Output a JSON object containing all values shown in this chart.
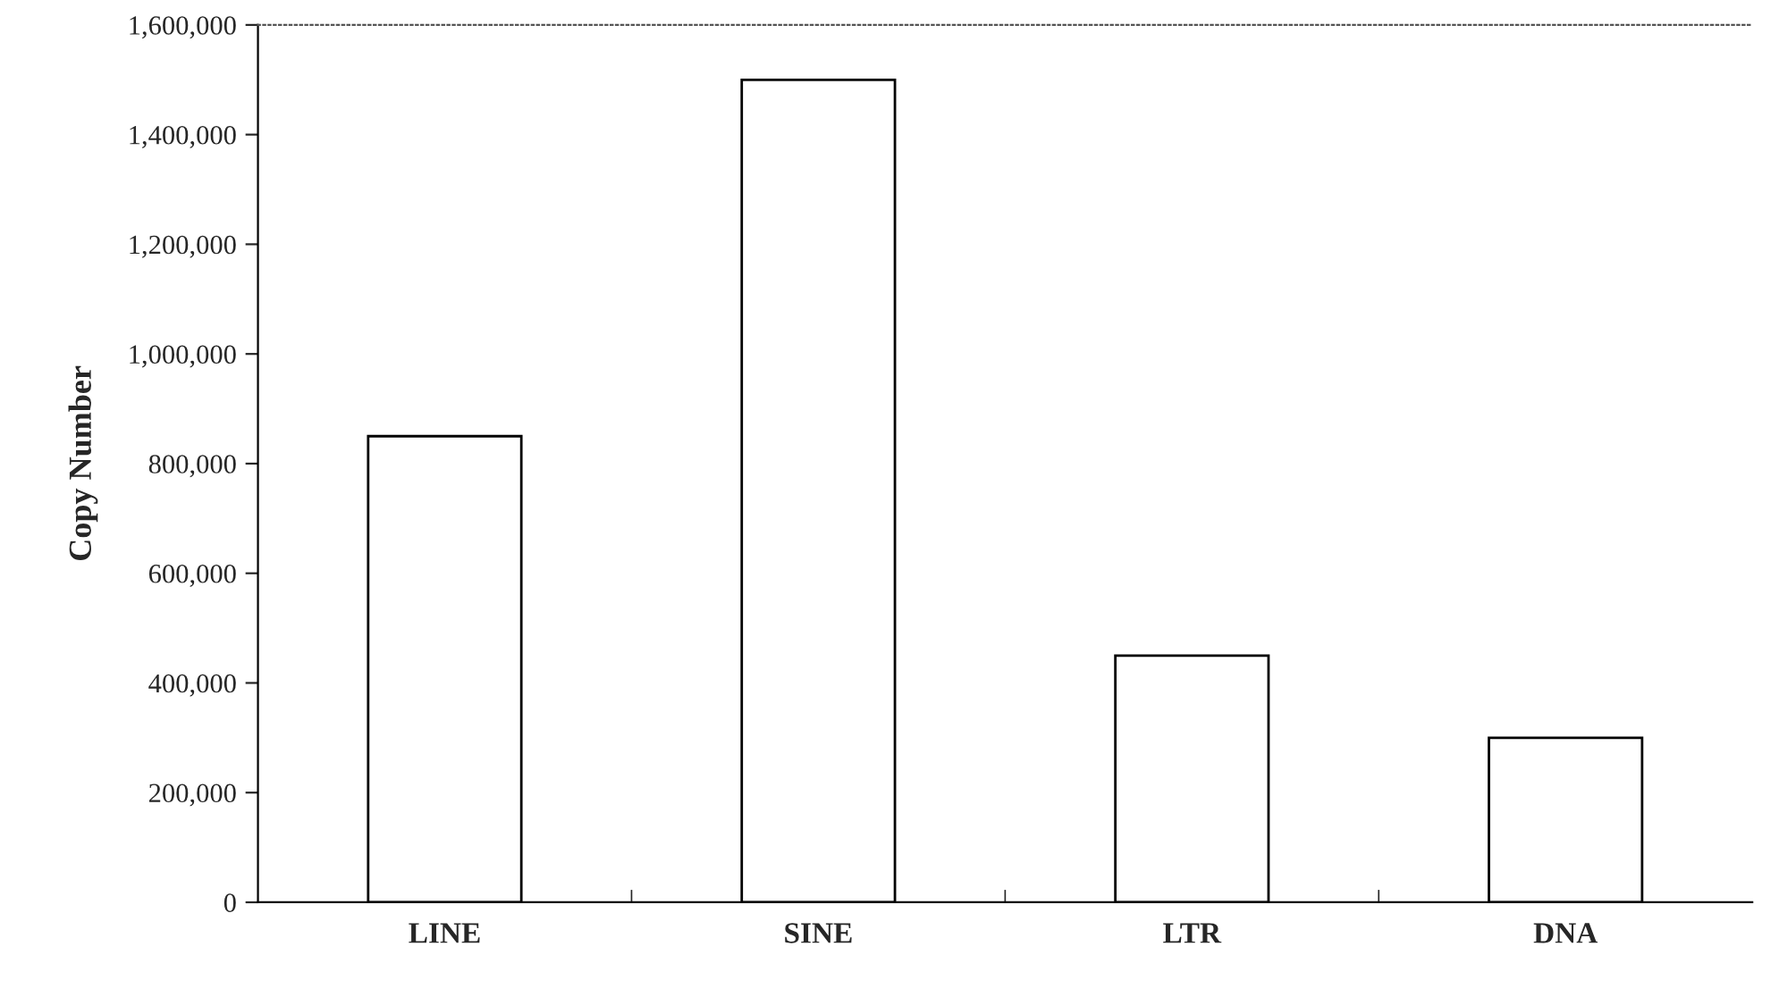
{
  "chart_data": {
    "type": "bar",
    "ylabel": "Copy Number",
    "categories": [
      "LINE",
      "SINE",
      "LTR",
      "DNA"
    ],
    "values": [
      850000,
      1500000,
      450000,
      300000
    ],
    "color": "#ffffff",
    "ylim": [
      0,
      1600000
    ],
    "yticks": [
      {
        "value": 0,
        "label": "0"
      },
      {
        "value": 200000,
        "label": "200,000"
      },
      {
        "value": 400000,
        "label": "400,000"
      },
      {
        "value": 600000,
        "label": "600,000"
      },
      {
        "value": 800000,
        "label": "800,000"
      },
      {
        "value": 1000000,
        "label": "1,000,000"
      },
      {
        "value": 1200000,
        "label": "1,200,000"
      },
      {
        "value": 1400000,
        "label": "1,400,000"
      },
      {
        "value": 1600000,
        "label": "1,600,000"
      }
    ],
    "grid": false,
    "legend": false
  }
}
